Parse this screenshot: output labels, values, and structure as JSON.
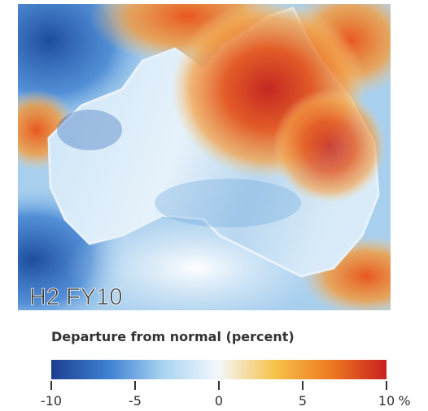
{
  "map": {
    "label": "H2 FY10"
  },
  "colorbar": {
    "title": "Departure from normal (percent)",
    "lim": [
      -10,
      10
    ],
    "ticks": [
      -10,
      -5,
      0,
      5,
      10
    ],
    "unit": "%",
    "colors": [
      "#1c3f8f",
      "#3d7fd0",
      "#a9d3f2",
      "#f4f8fb",
      "#f6c24a",
      "#ee7a22",
      "#c8201d"
    ]
  }
}
